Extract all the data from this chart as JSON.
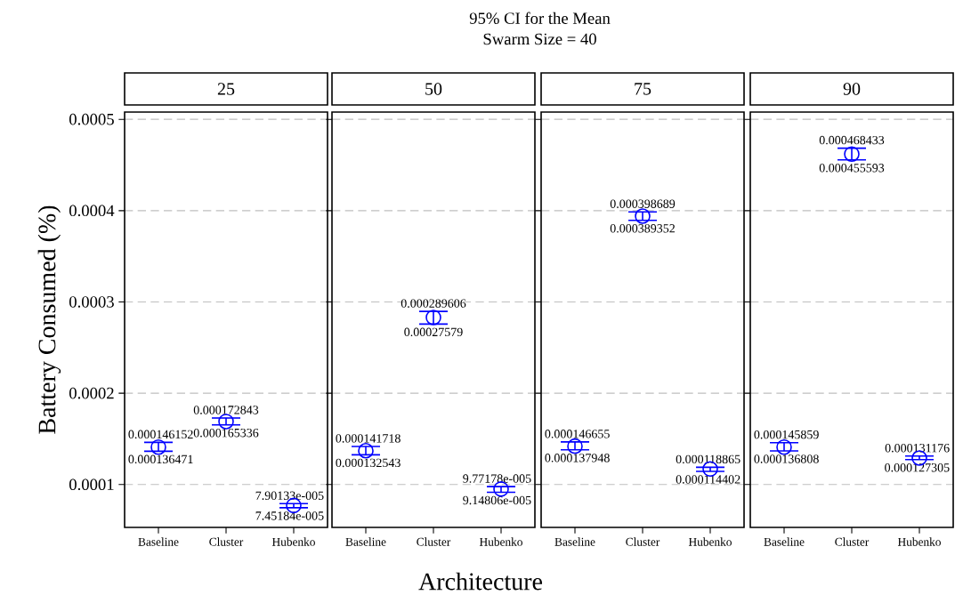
{
  "chart_data": [
    {
      "type": "scatter",
      "title": "25",
      "ylabel": "Battery Consumed (%)",
      "categories": [
        "Baseline",
        "Cluster",
        "Hubenko"
      ],
      "values": [
        0.000141,
        0.000169,
        7.7e-05
      ],
      "errors": [
        [
          0.000136471,
          0.000146152
        ],
        [
          0.000165336,
          0.000172843
        ],
        [
          7.45184e-05,
          7.90133e-05
        ]
      ],
      "color": "#0000ff",
      "marker": "circle",
      "grid": "y",
      "ylim": [
        5.3e-05,
        0.000508
      ],
      "yticks": [
        0.0001,
        0.0002,
        0.0003,
        0.0004,
        0.0005
      ],
      "tick_labels": true,
      "annotations": [
        {
          "text": "0.000146152",
          "x": "Baseline",
          "y": 0.000146152
        },
        {
          "text": "0.000136471",
          "x": "Baseline",
          "y": 0.000136471
        },
        {
          "text": "0.000172843",
          "x": "Cluster",
          "y": 0.000172843
        },
        {
          "text": "0.000165336",
          "x": "Cluster",
          "y": 0.000165336
        },
        {
          "text": "7.90133e-005",
          "x": "Hubenko",
          "y": 7.90133e-05
        },
        {
          "text": "7.45184e-005",
          "x": "Hubenko",
          "y": 7.45184e-05
        }
      ]
    },
    {
      "type": "scatter",
      "title": "50",
      "xlabel": "Architecture",
      "categories": [
        "Baseline",
        "Cluster",
        "Hubenko"
      ],
      "values": [
        0.000137,
        0.000283,
        9.5e-05
      ],
      "errors": [
        [
          0.000132543,
          0.000141718
        ],
        [
          0.00027579,
          0.000289606
        ],
        [
          9.14806e-05,
          9.77178e-05
        ]
      ],
      "color": "#0000ff",
      "marker": "circle",
      "grid": "y",
      "ylim": [
        5.3e-05,
        0.000508
      ],
      "yticks": [
        0.0001,
        0.0002,
        0.0003,
        0.0004,
        0.0005
      ],
      "tick_labels": "x",
      "annotations": [
        "95% CI for the Mean",
        "Swarm Size = 40",
        {
          "text": "0.000141718",
          "x": "Baseline",
          "y": 0.000141718
        },
        {
          "text": "0.000132543",
          "x": "Baseline",
          "y": 0.000132543
        },
        {
          "text": "0.000289606",
          "x": "Cluster",
          "y": 0.000289606
        },
        {
          "text": "0.00027579",
          "x": "Cluster",
          "y": 0.00027579
        },
        {
          "text": "9.77178e-005",
          "x": "Hubenko",
          "y": 9.77178e-05
        },
        {
          "text": "9.14806e-005",
          "x": "Hubenko",
          "y": 9.14806e-05
        }
      ]
    },
    {
      "type": "scatter",
      "title": "75",
      "categories": [
        "Baseline",
        "Cluster",
        "Hubenko"
      ],
      "values": [
        0.000142,
        0.000394,
        0.000117
      ],
      "errors": [
        [
          0.000137948,
          0.000146655
        ],
        [
          0.000389352,
          0.000398689
        ],
        [
          0.000114402,
          0.000118865
        ]
      ],
      "color": "#0000ff",
      "marker": "circle",
      "grid": "y",
      "ylim": [
        5.3e-05,
        0.000508
      ],
      "yticks": [
        0.0001,
        0.0002,
        0.0003,
        0.0004,
        0.0005
      ],
      "tick_labels": "x",
      "annotations": [
        {
          "text": "0.000146655",
          "x": "Baseline",
          "y": 0.000146655
        },
        {
          "text": "0.000137948",
          "x": "Baseline",
          "y": 0.000137948
        },
        {
          "text": "0.000398689",
          "x": "Cluster",
          "y": 0.000398689
        },
        {
          "text": "0.000389352",
          "x": "Cluster",
          "y": 0.000389352
        },
        {
          "text": "0.000118865",
          "x": "Hubenko",
          "y": 0.000118865
        },
        {
          "text": "0.000114402",
          "x": "Hubenko",
          "y": 0.000114402
        }
      ]
    },
    {
      "type": "scatter",
      "title": "90",
      "categories": [
        "Baseline",
        "Cluster",
        "Hubenko"
      ],
      "values": [
        0.000141,
        0.000462,
        0.000129
      ],
      "errors": [
        [
          0.000136808,
          0.000145859
        ],
        [
          0.000455593,
          0.000468433
        ],
        [
          0.000127305,
          0.000131176
        ]
      ],
      "color": "#0000ff",
      "marker": "circle",
      "grid": "y",
      "ylim": [
        5.3e-05,
        0.000508
      ],
      "yticks": [
        0.0001,
        0.0002,
        0.0003,
        0.0004,
        0.0005
      ],
      "tick_labels": "x",
      "annotations": [
        {
          "text": "0.000145859",
          "x": "Baseline",
          "y": 0.000145859
        },
        {
          "text": "0.000136808",
          "x": "Baseline",
          "y": 0.000136808
        },
        {
          "text": "0.000468433",
          "x": "Cluster",
          "y": 0.000468433
        },
        {
          "text": "0.000455593",
          "x": "Cluster",
          "y": 0.000455593
        },
        {
          "text": "0.000131176",
          "x": "Hubenko",
          "y": 0.000131176
        },
        {
          "text": "0.000127305",
          "x": "Hubenko",
          "y": 0.000127305
        }
      ]
    }
  ]
}
